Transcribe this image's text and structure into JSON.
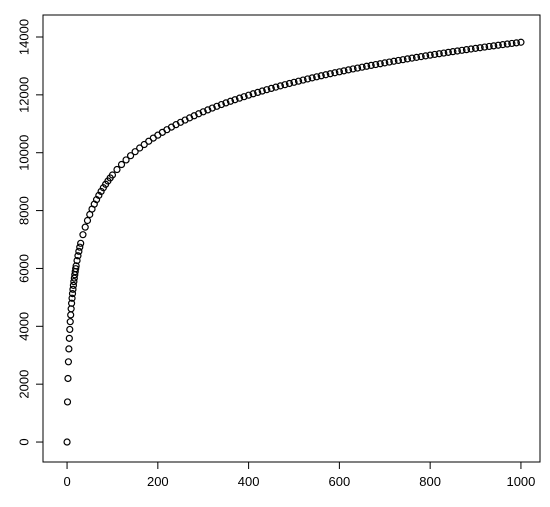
{
  "chart_data": {
    "type": "scatter",
    "color": "#000000",
    "marker": "open-circle",
    "x": [
      0,
      1,
      2,
      3,
      4,
      5,
      6,
      7,
      8,
      9,
      10,
      11,
      12,
      13,
      14,
      15,
      16,
      17,
      18,
      19,
      20,
      22,
      24,
      26,
      28,
      30,
      35,
      40,
      45,
      50,
      55,
      60,
      65,
      70,
      75,
      80,
      85,
      90,
      95,
      100,
      110,
      120,
      130,
      140,
      150,
      160,
      170,
      180,
      190,
      200,
      210,
      220,
      230,
      240,
      250,
      260,
      270,
      280,
      290,
      300,
      310,
      320,
      330,
      340,
      350,
      360,
      370,
      380,
      390,
      400,
      410,
      420,
      430,
      440,
      450,
      460,
      470,
      480,
      490,
      500,
      510,
      520,
      530,
      540,
      550,
      560,
      570,
      580,
      590,
      600,
      610,
      620,
      630,
      640,
      650,
      660,
      670,
      680,
      690,
      700,
      710,
      720,
      730,
      740,
      750,
      760,
      770,
      780,
      790,
      800,
      810,
      820,
      830,
      840,
      850,
      860,
      870,
      880,
      890,
      900,
      910,
      920,
      930,
      940,
      950,
      960,
      970,
      980,
      990,
      1000
    ],
    "y": [
      0,
      1386,
      2197,
      2773,
      3219,
      3584,
      3892,
      4159,
      4394,
      4605,
      4796,
      4970,
      5130,
      5278,
      5416,
      5545,
      5666,
      5781,
      5889,
      5991,
      6089,
      6271,
      6438,
      6592,
      6735,
      6868,
      7167,
      7427,
      7657,
      7864,
      8051,
      8222,
      8379,
      8525,
      8661,
      8789,
      8909,
      9022,
      9129,
      9230,
      9419,
      9592,
      9750,
      9898,
      10035,
      10163,
      10283,
      10397,
      10505,
      10607,
      10704,
      10796,
      10885,
      10970,
      11051,
      11129,
      11204,
      11277,
      11347,
      11414,
      11480,
      11543,
      11604,
      11664,
      11722,
      11778,
      11832,
      11886,
      11937,
      11988,
      12037,
      12085,
      12132,
      12178,
      12223,
      12267,
      12310,
      12352,
      12393,
      12433,
      12473,
      12512,
      12550,
      12587,
      12623,
      12659,
      12695,
      12730,
      12764,
      12797,
      12830,
      12863,
      12895,
      12926,
      12957,
      12988,
      13018,
      13047,
      13076,
      13105,
      13133,
      13161,
      13189,
      13216,
      13243,
      13269,
      13295,
      13321,
      13347,
      13372,
      13397,
      13421,
      13445,
      13469,
      13493,
      13516,
      13539,
      13562,
      13585,
      13607,
      13629,
      13651,
      13673,
      13694,
      13715,
      13736,
      13757,
      13777,
      13797,
      13818
    ],
    "xlim": [
      -53,
      1042
    ],
    "ylim": [
      -690,
      14760
    ],
    "xticks": [
      0,
      200,
      400,
      600,
      800,
      1000
    ],
    "yticks": [
      0,
      2000,
      4000,
      6000,
      8000,
      10000,
      12000,
      14000
    ]
  }
}
